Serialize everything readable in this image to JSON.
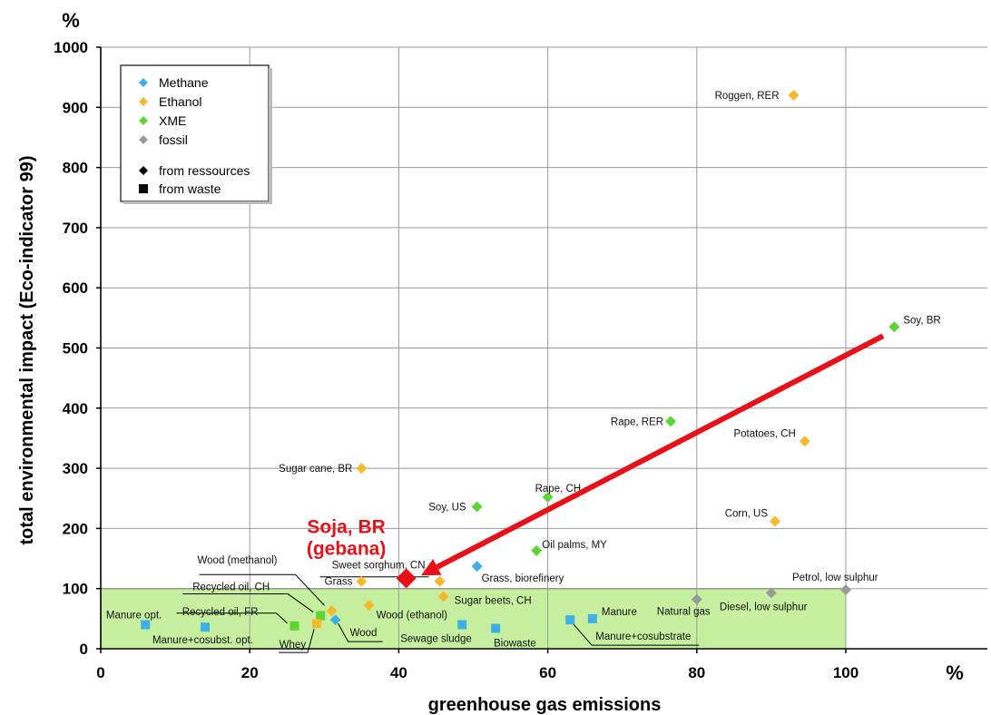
{
  "chart_data": {
    "type": "scatter",
    "xlabel": "greenhouse gas emissions",
    "ylabel": "total environmental impact (Eco-indicator 99)",
    "x_unit": "%",
    "y_unit": "%",
    "xlim": [
      0,
      119
    ],
    "ylim": [
      0,
      1000
    ],
    "xticks": [
      0,
      20,
      40,
      60,
      80,
      100
    ],
    "yticks": [
      0,
      100,
      200,
      300,
      400,
      500,
      600,
      700,
      800,
      900,
      1000
    ],
    "grid": true,
    "legend_position": "top-left",
    "colors": {
      "Methane": "#3fb0e6",
      "Ethanol": "#f5b92a",
      "XME": "#5cd633",
      "fossil": "#9a9a9a",
      "highlight": "#e8111a",
      "reference_box": "#c6f0a0"
    },
    "legend": {
      "series": [
        {
          "name": "Methane",
          "color": "#3fb0e6"
        },
        {
          "name": "Ethanol",
          "color": "#f5b92a"
        },
        {
          "name": "XME",
          "color": "#5cd633"
        },
        {
          "name": "fossil",
          "color": "#9a9a9a"
        }
      ],
      "markers": [
        {
          "label": "from ressources",
          "shape": "diamond"
        },
        {
          "label": "from waste",
          "shape": "square"
        }
      ]
    },
    "reference_box": {
      "x": [
        0,
        100
      ],
      "y": [
        0,
        100
      ]
    },
    "points": [
      {
        "label": "Roggen, RER",
        "series": "Ethanol",
        "shape": "diamond",
        "x": 93,
        "y": 920
      },
      {
        "label": "Soy, BR",
        "series": "XME",
        "shape": "diamond",
        "x": 106.5,
        "y": 535
      },
      {
        "label": "Rape, RER",
        "series": "XME",
        "shape": "diamond",
        "x": 76.5,
        "y": 378
      },
      {
        "label": "Potatoes, CH",
        "series": "Ethanol",
        "shape": "diamond",
        "x": 94.5,
        "y": 345
      },
      {
        "label": "Sugar cane, BR",
        "series": "Ethanol",
        "shape": "diamond",
        "x": 35,
        "y": 300
      },
      {
        "label": "Rape, CH",
        "series": "XME",
        "shape": "diamond",
        "x": 60,
        "y": 252
      },
      {
        "label": "Soy, US",
        "series": "XME",
        "shape": "diamond",
        "x": 50.5,
        "y": 236
      },
      {
        "label": "Corn, US",
        "series": "Ethanol",
        "shape": "diamond",
        "x": 90.5,
        "y": 212
      },
      {
        "label": "Oil palms, MY",
        "series": "XME",
        "shape": "diamond",
        "x": 58.5,
        "y": 163
      },
      {
        "label": "Sweet sorghum, CN",
        "series": "Ethanol",
        "shape": "diamond",
        "x": 45.5,
        "y": 112
      },
      {
        "label": "Grass",
        "series": "Ethanol",
        "shape": "diamond",
        "x": 35,
        "y": 112
      },
      {
        "label": "Grass, biorefinery",
        "series": "Methane",
        "shape": "diamond",
        "x": 50.5,
        "y": 137
      },
      {
        "label": "Petrol, low sulphur",
        "series": "fossil",
        "shape": "diamond",
        "x": 100,
        "y": 98
      },
      {
        "label": "Diesel, low sulphur",
        "series": "fossil",
        "shape": "diamond",
        "x": 90,
        "y": 93
      },
      {
        "label": "Natural gas",
        "series": "fossil",
        "shape": "diamond",
        "x": 80,
        "y": 82
      },
      {
        "label": "Sugar beets, CH",
        "series": "Ethanol",
        "shape": "diamond",
        "x": 46,
        "y": 87
      },
      {
        "label": "Wood (ethanol)",
        "series": "Ethanol",
        "shape": "diamond",
        "x": 36,
        "y": 72
      },
      {
        "label": "Wood (methanol)",
        "series": "Ethanol",
        "shape": "diamond",
        "x": 31,
        "y": 63
      },
      {
        "label": "Recycled oil, CH",
        "series": "XME",
        "shape": "square",
        "x": 29.5,
        "y": 55
      },
      {
        "label": "Recycled oil, FR",
        "series": "XME",
        "shape": "square",
        "x": 26,
        "y": 38
      },
      {
        "label": "Whey",
        "series": "Ethanol",
        "shape": "square",
        "x": 29,
        "y": 42
      },
      {
        "label": "Wood",
        "series": "Methane",
        "shape": "diamond",
        "x": 31.5,
        "y": 48
      },
      {
        "label": "Manure opt.",
        "series": "Methane",
        "shape": "square",
        "x": 6,
        "y": 40
      },
      {
        "label": "Manure+cosubst. opt.",
        "series": "Methane",
        "shape": "square",
        "x": 14,
        "y": 36
      },
      {
        "label": "Sewage sludge",
        "series": "Methane",
        "shape": "square",
        "x": 48.5,
        "y": 40
      },
      {
        "label": "Biowaste",
        "series": "Methane",
        "shape": "square",
        "x": 53,
        "y": 34
      },
      {
        "label": "Manure",
        "series": "Methane",
        "shape": "square",
        "x": 66,
        "y": 50
      },
      {
        "label": "Manure+cosubstrate",
        "series": "Methane",
        "shape": "square",
        "x": 63,
        "y": 48
      }
    ],
    "highlight": {
      "label_line1": "Soja, BR",
      "label_line2": "(gebana)",
      "x": 41,
      "y": 117,
      "arrow_from": {
        "x": 105,
        "y": 520
      },
      "arrow_to": {
        "x": 43,
        "y": 122
      }
    }
  }
}
